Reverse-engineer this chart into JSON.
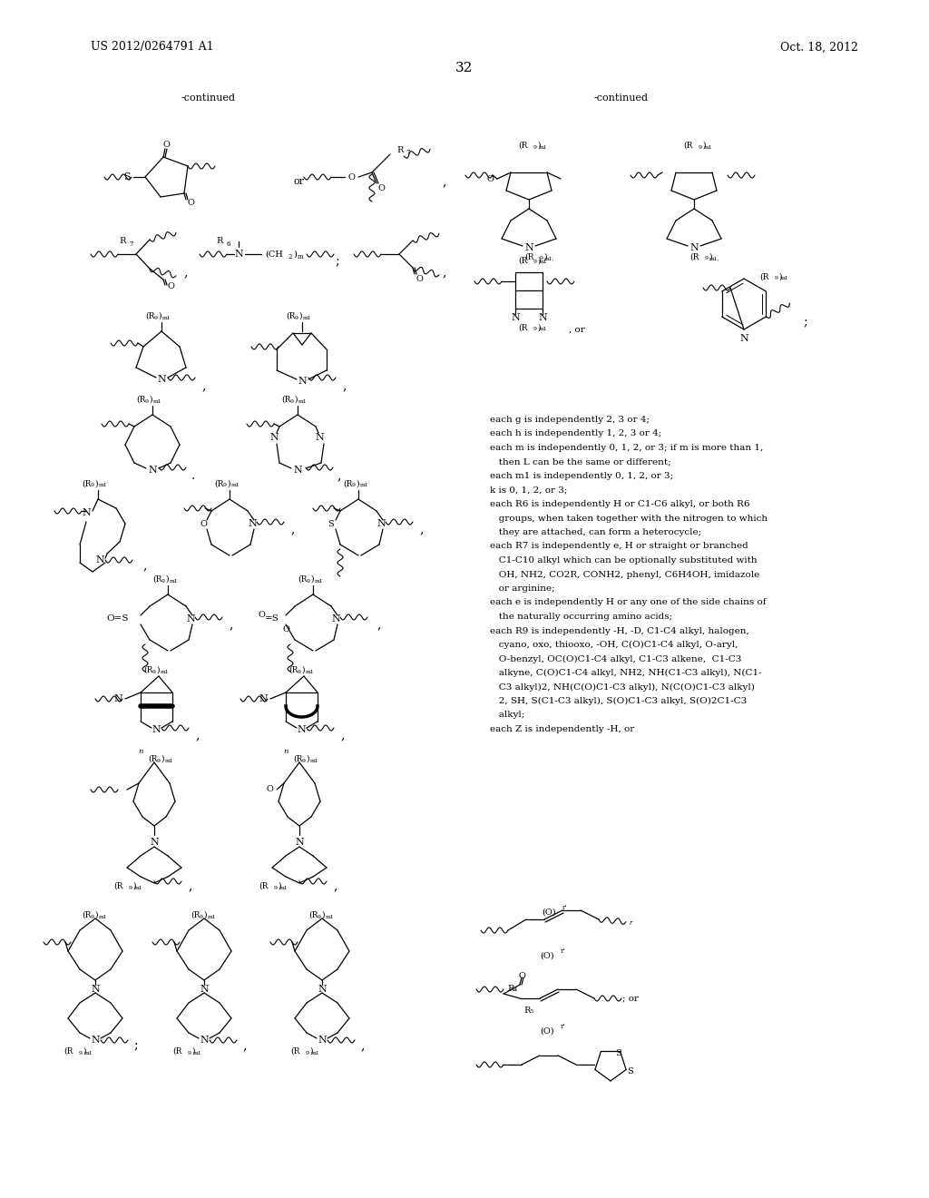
{
  "patent_number": "US 2012/0264791 A1",
  "patent_date": "Oct. 18, 2012",
  "page_number": "32",
  "background_color": "#ffffff",
  "figsize": [
    10.24,
    13.2
  ],
  "dpi": 100,
  "definitions": [
    "each g is independently 2, 3 or 4;",
    "each h is independently 1, 2, 3 or 4;",
    "each m is independently 0, 1, 2, or 3; if m is more than 1,",
    "   then L can be the same or different;",
    "each m1 is independently 0, 1, 2, or 3;",
    "k is 0, 1, 2, or 3;",
    "each R6 is independently H or C1-C6 alkyl, or both R6",
    "   groups, when taken together with the nitrogen to which",
    "   they are attached, can form a heterocycle;",
    "each R7 is independently e, H or straight or branched",
    "   C1-C10 alkyl which can be optionally substituted with",
    "   OH, NH2, CO2R, CONH2, phenyl, C6H4OH, imidazole",
    "   or arginine;",
    "each e is independently H or any one of the side chains of",
    "   the naturally occurring amino acids;",
    "each R9 is independently -H, -D, C1-C4 alkyl, halogen,",
    "   cyano, oxo, thiooxo, -OH, C(O)C1-C4 alkyl, O-aryl,",
    "   O-benzyl, OC(O)C1-C4 alkyl, C1-C3 alkene,  C1-C3",
    "   alkyne, C(O)C1-C4 alkyl, NH2, NH(C1-C3 alkyl), N(C1-",
    "   C3 alkyl)2, NH(C(O)C1-C3 alkyl), N(C(O)C1-C3 alkyl)",
    "   2, SH, S(C1-C3 alkyl), S(O)C1-C3 alkyl, S(O)2C1-C3",
    "   alkyl;",
    "each Z is independently -H, or"
  ]
}
